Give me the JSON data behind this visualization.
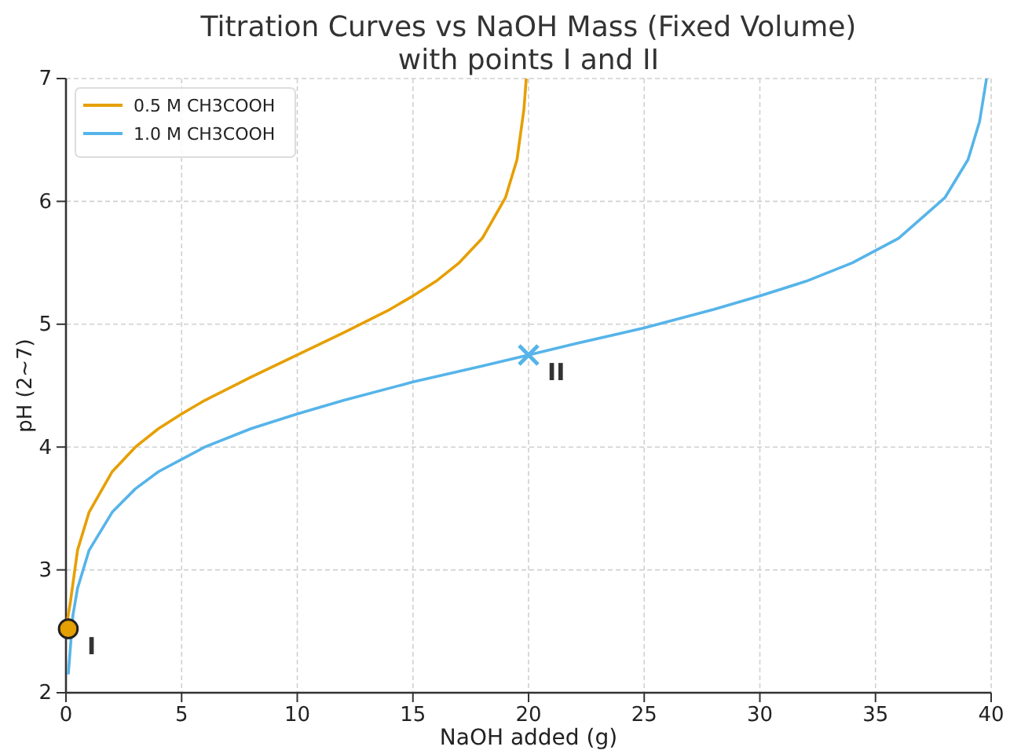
{
  "chart_data": {
    "type": "line",
    "title": "Titration Curves vs NaOH Mass (Fixed Volume)\nwith points I and II",
    "xlabel": "NaOH added (g)",
    "ylabel": "pH (2~7)",
    "xlim": [
      0,
      40
    ],
    "ylim": [
      2,
      7
    ],
    "xticks": [
      0,
      5,
      10,
      15,
      20,
      25,
      30,
      35,
      40
    ],
    "yticks": [
      2,
      3,
      4,
      5,
      6,
      7
    ],
    "grid": true,
    "legend": "top left",
    "line_style": "solid",
    "series": [
      {
        "name": "0.5 M CH3COOH",
        "color": "#e69f00",
        "marker": "none",
        "x": [
          0,
          0.2,
          0.5,
          1,
          2,
          3,
          4,
          5,
          6,
          8,
          10,
          12,
          14,
          15,
          16,
          17,
          18,
          19,
          19.5,
          19.8,
          19.9
        ],
        "values": [
          2.52,
          2.75,
          3.16,
          3.47,
          3.8,
          4.0,
          4.15,
          4.27,
          4.38,
          4.57,
          4.75,
          4.93,
          5.12,
          5.23,
          5.35,
          5.5,
          5.7,
          6.03,
          6.34,
          6.75,
          7.0
        ]
      },
      {
        "name": "1.0 M CH3COOH",
        "color": "#56b4e9",
        "marker": "none",
        "x": [
          0.1,
          0.3,
          0.5,
          1,
          2,
          3,
          4,
          5,
          6,
          8,
          10,
          12,
          15,
          18,
          20,
          22,
          25,
          28,
          30,
          32,
          34,
          36,
          38,
          39,
          39.5,
          39.8
        ],
        "values": [
          2.15,
          2.63,
          2.85,
          3.16,
          3.47,
          3.66,
          3.8,
          3.9,
          4.0,
          4.15,
          4.27,
          4.38,
          4.53,
          4.66,
          4.75,
          4.84,
          4.97,
          5.12,
          5.23,
          5.35,
          5.5,
          5.7,
          6.03,
          6.34,
          6.65,
          7.0
        ]
      },
      {
        "type": "scatter",
        "color": "#e69f00",
        "marker": "circle",
        "x": [
          0.1
        ],
        "values": [
          2.52
        ]
      },
      {
        "type": "scatter",
        "color": "#56b4e9",
        "marker": "cross",
        "x": [
          20
        ],
        "values": [
          4.75
        ]
      }
    ],
    "annotations": [
      {
        "text": "I",
        "x": 0.1,
        "y": 2.52
      },
      {
        "text": "II",
        "x": 20,
        "y": 4.75
      }
    ]
  }
}
